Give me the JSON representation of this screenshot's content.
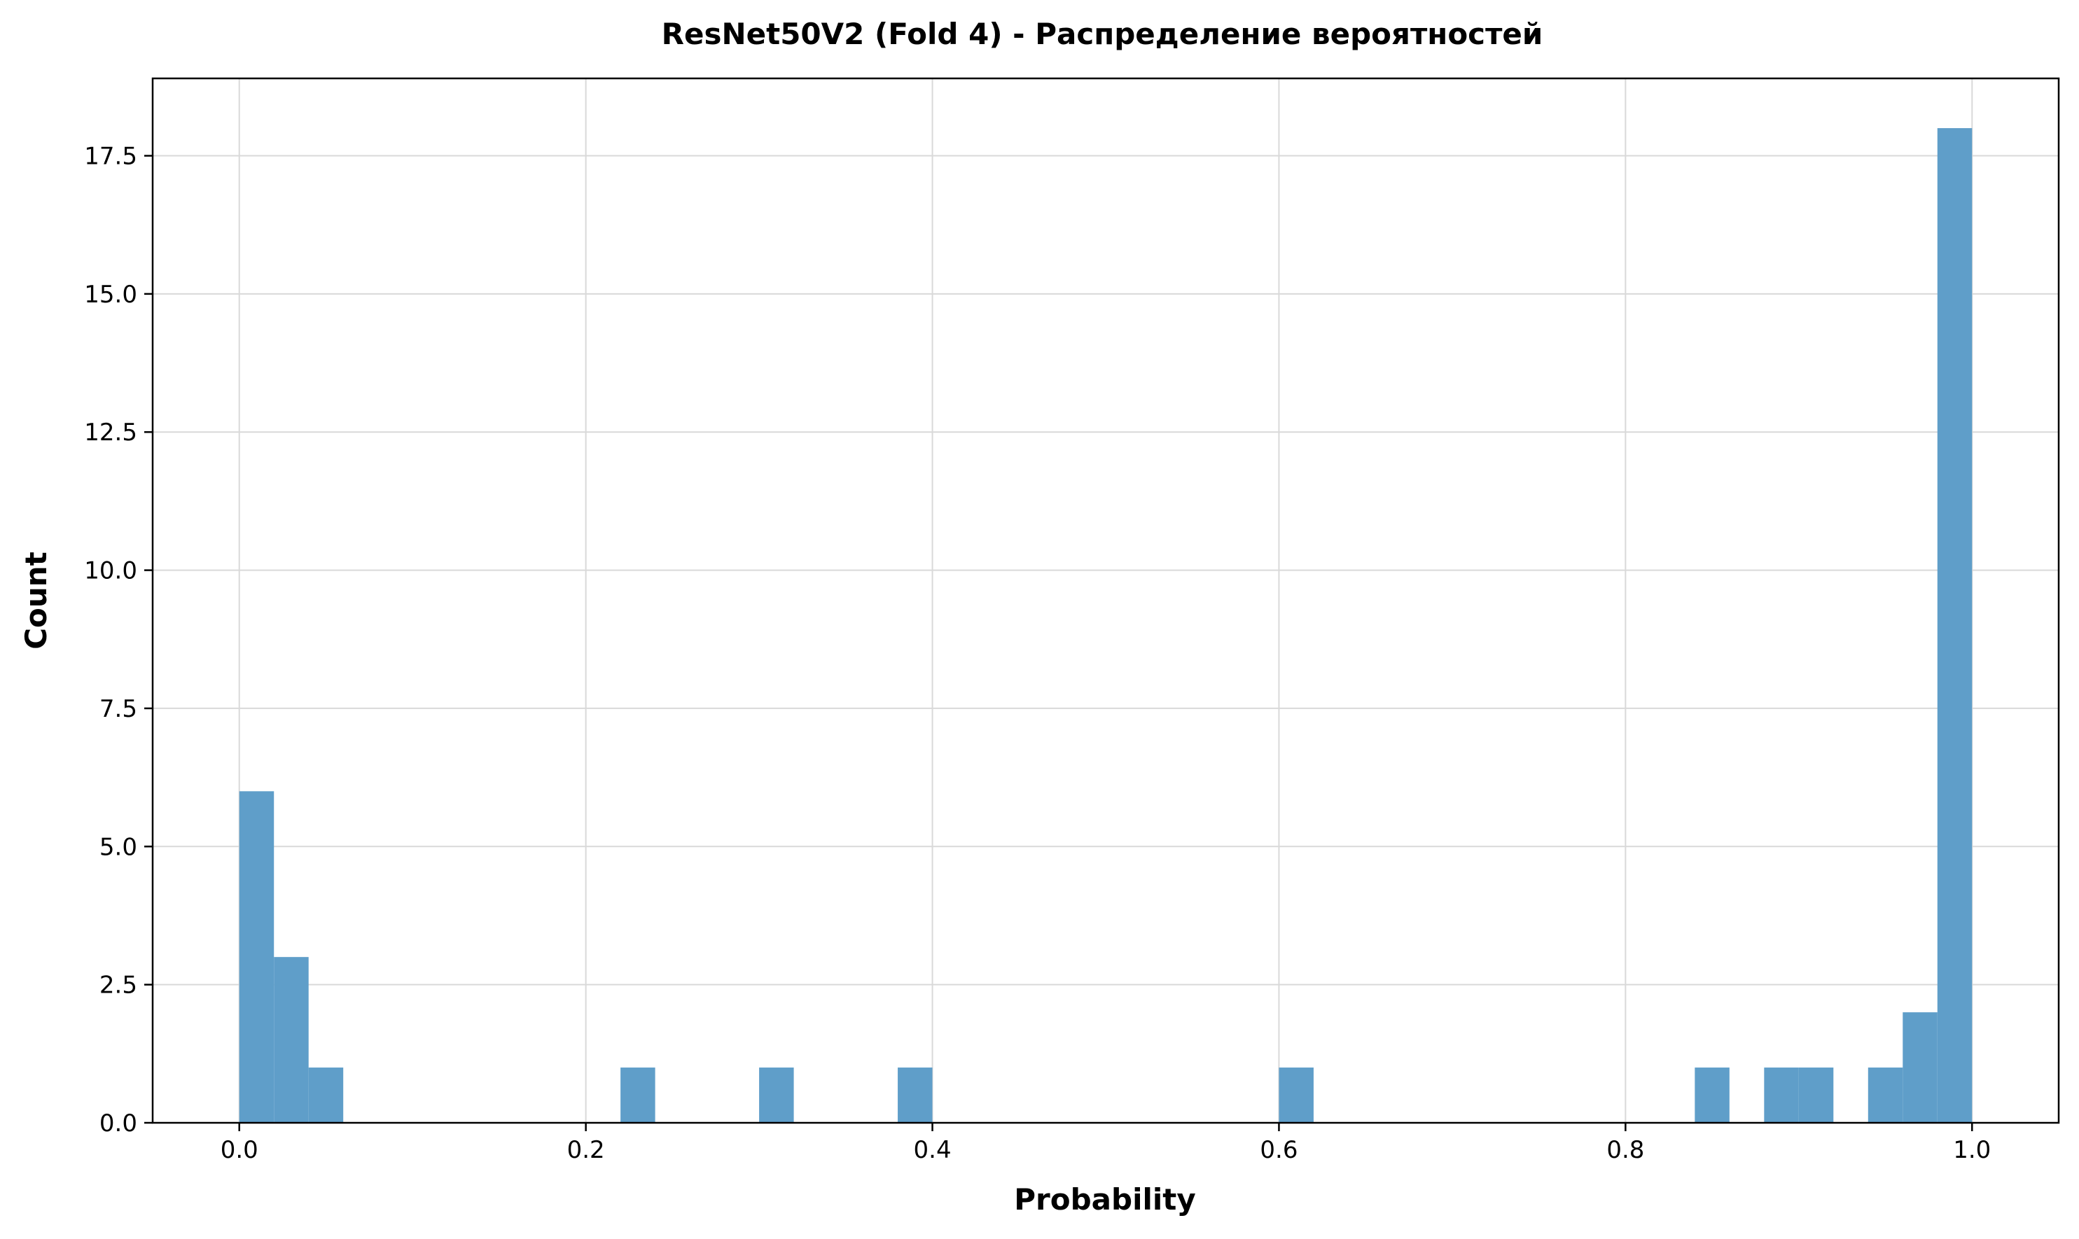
{
  "chart_data": {
    "type": "bar",
    "title": "ResNet50V2 (Fold 4) - Распределение вероятностей",
    "xlabel": "Probability",
    "ylabel": "Count",
    "xlim": [
      -0.05,
      1.05
    ],
    "ylim": [
      0,
      18.9
    ],
    "xticks": [
      0.0,
      0.2,
      0.4,
      0.6,
      0.8,
      1.0
    ],
    "xtick_labels": [
      "0.0",
      "0.2",
      "0.4",
      "0.6",
      "0.8",
      "1.0"
    ],
    "yticks": [
      0,
      2.5,
      5,
      7.5,
      10,
      12.5,
      15,
      17.5
    ],
    "ytick_labels": [
      "0.0",
      "2.5",
      "5.0",
      "7.5",
      "10.0",
      "12.5",
      "15.0",
      "17.5"
    ],
    "grid": true,
    "bar_color": "#5f9ec9",
    "bins": [
      {
        "x0": 0.0,
        "x1": 0.02,
        "count": 6
      },
      {
        "x0": 0.02,
        "x1": 0.04,
        "count": 3
      },
      {
        "x0": 0.04,
        "x1": 0.06,
        "count": 1
      },
      {
        "x0": 0.22,
        "x1": 0.24,
        "count": 1
      },
      {
        "x0": 0.3,
        "x1": 0.32,
        "count": 1
      },
      {
        "x0": 0.38,
        "x1": 0.4,
        "count": 1
      },
      {
        "x0": 0.6,
        "x1": 0.62,
        "count": 1
      },
      {
        "x0": 0.84,
        "x1": 0.86,
        "count": 1
      },
      {
        "x0": 0.88,
        "x1": 0.9,
        "count": 1
      },
      {
        "x0": 0.9,
        "x1": 0.92,
        "count": 1
      },
      {
        "x0": 0.94,
        "x1": 0.96,
        "count": 1
      },
      {
        "x0": 0.96,
        "x1": 0.98,
        "count": 2
      },
      {
        "x0": 0.98,
        "x1": 1.0,
        "count": 18
      }
    ]
  }
}
